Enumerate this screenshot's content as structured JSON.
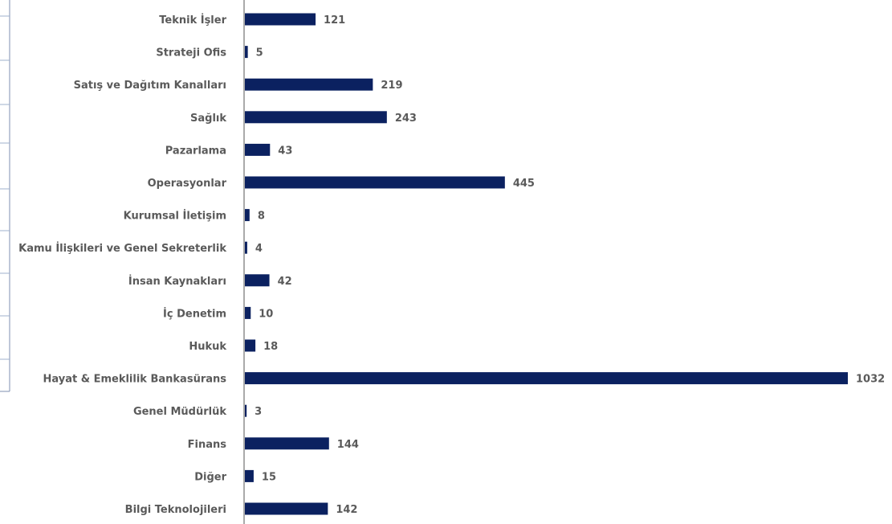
{
  "chart_data": {
    "type": "bar",
    "orientation": "horizontal",
    "categories": [
      "Teknik İşler",
      "Strateji Ofis",
      "Satış ve Dağıtım Kanalları",
      "Sağlık",
      "Pazarlama",
      "Operasyonlar",
      "Kurumsal İletişim",
      "Kamu İlişkileri ve Genel Sekreterlik",
      "İnsan Kaynakları",
      "İç Denetim",
      "Hukuk",
      "Hayat & Emeklilik Bankasürans",
      "Genel Müdürlük",
      "Finans",
      "Diğer",
      "Bilgi Teknolojileri"
    ],
    "values": [
      121,
      5,
      219,
      243,
      43,
      445,
      8,
      4,
      42,
      10,
      18,
      1032,
      3,
      144,
      15,
      142
    ],
    "title": "",
    "xlabel": "",
    "ylabel": "",
    "xlim": [
      0,
      1032
    ],
    "grid": false,
    "legend": "none",
    "bar_color": "#0b2160",
    "label_color": "#5a5a5a",
    "axis_color": "#555555"
  }
}
